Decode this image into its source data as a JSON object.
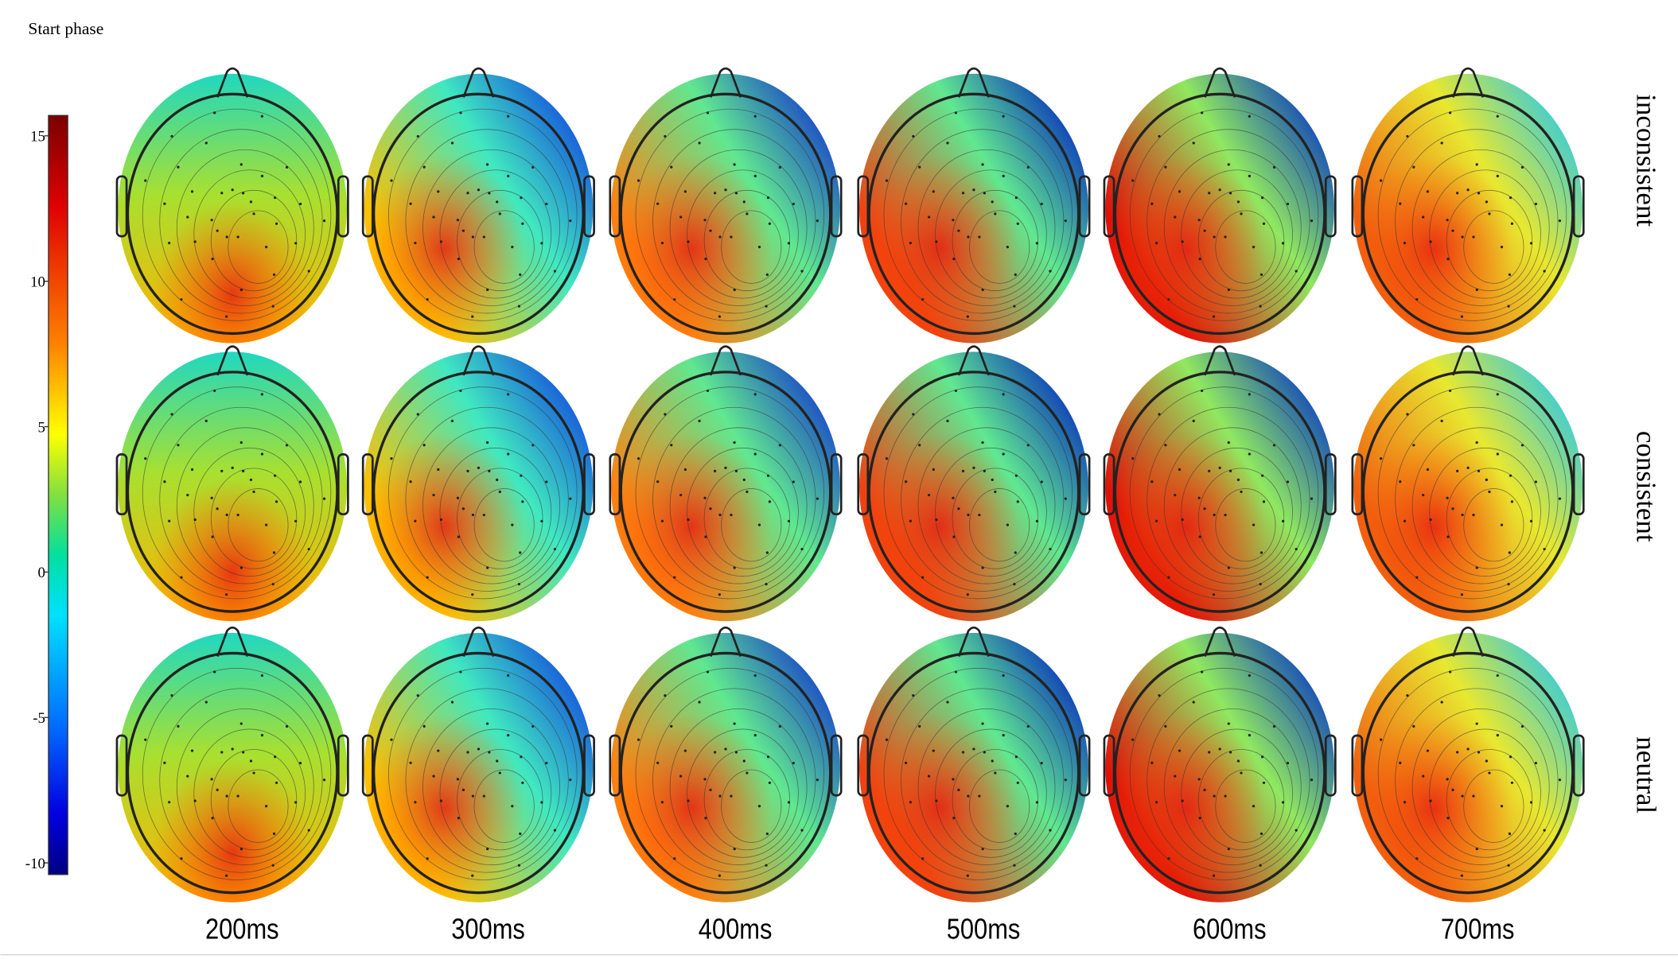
{
  "title": "Start phase",
  "colorbar": {
    "lim": [
      -10.4,
      15.7
    ],
    "ticks": [
      15,
      10,
      5,
      0,
      -5,
      -10
    ]
  },
  "rows": [
    "inconsistent",
    "consistent",
    "neutral"
  ],
  "columns": [
    "200ms",
    "300ms",
    "400ms",
    "500ms",
    "600ms",
    "700ms"
  ]
}
